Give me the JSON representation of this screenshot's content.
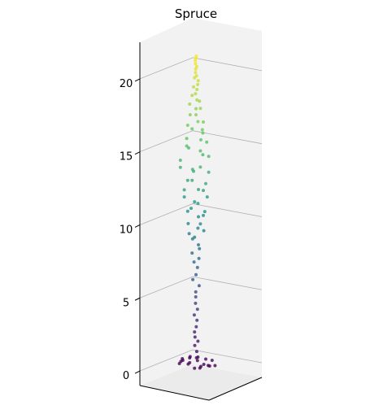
{
  "chart_data": {
    "type": "scatter",
    "title": "Spruce",
    "xlabel": "",
    "ylabel": "",
    "zlabel": "",
    "z_ticks": [
      "0",
      "5",
      "10",
      "15",
      "20"
    ],
    "zlim": [
      -1,
      22.5
    ],
    "grid": true,
    "colormap": "viridis",
    "color_by": "z",
    "point_color": "#440154",
    "series": [
      {
        "name": "",
        "points_xyz": [
          [
            -0.3,
            0.2,
            0.1
          ],
          [
            0.4,
            -0.2,
            0.05
          ],
          [
            0.6,
            0.5,
            0.0
          ],
          [
            -0.7,
            -0.4,
            0.2
          ],
          [
            0.9,
            0.1,
            0.15
          ],
          [
            -0.5,
            0.6,
            0.3
          ],
          [
            0.2,
            -0.7,
            0.25
          ],
          [
            1.1,
            -0.3,
            0.1
          ],
          [
            -0.9,
            0.2,
            0.05
          ],
          [
            0.0,
            0.8,
            0.2
          ],
          [
            0.3,
            0.3,
            0.4
          ],
          [
            -0.2,
            -0.5,
            0.35
          ],
          [
            0.7,
            -0.6,
            0.3
          ],
          [
            -1.0,
            -0.1,
            0.15
          ],
          [
            0.5,
            0.9,
            0.05
          ],
          [
            1.2,
            0.4,
            0.25
          ],
          [
            -0.6,
            0.8,
            0.1
          ],
          [
            0.1,
            0.1,
            0.5
          ],
          [
            -0.4,
            0.0,
            0.45
          ],
          [
            0.8,
            0.7,
            0.2
          ],
          [
            0.05,
            0.0,
            0.9
          ],
          [
            -0.05,
            0.05,
            1.3
          ],
          [
            0.1,
            -0.05,
            1.6
          ],
          [
            0.0,
            0.1,
            1.9
          ],
          [
            -0.1,
            0.0,
            2.2
          ],
          [
            0.05,
            0.05,
            2.6
          ],
          [
            0.0,
            -0.1,
            3.0
          ],
          [
            -0.05,
            0.1,
            3.4
          ],
          [
            0.1,
            0.0,
            3.8
          ],
          [
            0.0,
            0.05,
            4.2
          ],
          [
            -0.05,
            -0.05,
            4.6
          ],
          [
            0.05,
            0.1,
            5.0
          ],
          [
            0.15,
            -0.1,
            5.4
          ],
          [
            -0.15,
            0.1,
            5.8
          ],
          [
            0.1,
            0.15,
            6.2
          ],
          [
            0.0,
            -0.15,
            6.6
          ],
          [
            -0.1,
            0.05,
            7.0
          ],
          [
            0.2,
            0.0,
            7.3
          ],
          [
            -0.2,
            0.1,
            7.6
          ],
          [
            0.1,
            -0.2,
            7.9
          ],
          [
            0.3,
            0.2,
            8.3
          ],
          [
            -0.3,
            -0.1,
            8.5
          ],
          [
            0.1,
            0.3,
            8.8
          ],
          [
            -0.2,
            0.4,
            9.0
          ],
          [
            0.4,
            -0.2,
            9.2
          ],
          [
            0.2,
            0.1,
            9.4
          ],
          [
            -0.4,
            0.2,
            9.6
          ],
          [
            0.5,
            0.3,
            9.8
          ],
          [
            -0.1,
            -0.4,
            10.0
          ],
          [
            0.3,
            -0.3,
            10.2
          ],
          [
            -0.5,
            0.1,
            10.4
          ],
          [
            0.6,
            0.0,
            10.6
          ],
          [
            0.0,
            0.5,
            10.8
          ],
          [
            -0.3,
            -0.3,
            11.0
          ],
          [
            0.4,
            0.4,
            11.2
          ],
          [
            -0.6,
            0.3,
            11.4
          ],
          [
            0.7,
            -0.1,
            11.6
          ],
          [
            0.1,
            -0.6,
            11.8
          ],
          [
            -0.4,
            0.6,
            12.0
          ],
          [
            0.5,
            0.5,
            12.2
          ],
          [
            -0.7,
            -0.2,
            12.4
          ],
          [
            0.8,
            0.2,
            12.6
          ],
          [
            0.2,
            0.7,
            12.8
          ],
          [
            -0.5,
            -0.5,
            13.0
          ],
          [
            0.6,
            -0.4,
            13.2
          ],
          [
            -0.8,
            0.4,
            13.4
          ],
          [
            0.3,
            0.8,
            13.6
          ],
          [
            0.7,
            0.6,
            13.8
          ],
          [
            -0.6,
            0.7,
            14.0
          ],
          [
            0.0,
            -0.7,
            14.2
          ],
          [
            0.8,
            -0.1,
            14.4
          ],
          [
            -0.7,
            -0.3,
            14.6
          ],
          [
            0.5,
            0.3,
            14.8
          ],
          [
            -0.3,
            0.5,
            15.0
          ],
          [
            0.4,
            -0.5,
            15.2
          ],
          [
            -0.5,
            0.2,
            15.4
          ],
          [
            0.6,
            0.4,
            15.6
          ],
          [
            0.2,
            -0.4,
            15.8
          ],
          [
            -0.4,
            -0.2,
            16.0
          ],
          [
            0.5,
            0.1,
            16.2
          ],
          [
            -0.3,
            0.4,
            16.4
          ],
          [
            0.3,
            -0.3,
            16.6
          ],
          [
            0.4,
            0.4,
            16.8
          ],
          [
            -0.4,
            0.0,
            17.0
          ],
          [
            0.2,
            0.3,
            17.2
          ],
          [
            -0.2,
            -0.3,
            17.4
          ],
          [
            0.3,
            0.0,
            17.6
          ],
          [
            -0.3,
            0.2,
            17.8
          ],
          [
            0.1,
            -0.2,
            18.0
          ],
          [
            0.2,
            0.2,
            18.2
          ],
          [
            -0.2,
            0.1,
            18.4
          ],
          [
            0.1,
            0.2,
            18.6
          ],
          [
            0.0,
            -0.1,
            18.8
          ],
          [
            -0.1,
            0.1,
            19.0
          ],
          [
            0.15,
            0.05,
            19.2
          ],
          [
            0.05,
            -0.15,
            19.4
          ],
          [
            -0.1,
            0.0,
            19.6
          ],
          [
            0.1,
            0.1,
            19.8
          ],
          [
            0.0,
            0.05,
            20.0
          ],
          [
            -0.05,
            -0.05,
            20.2
          ],
          [
            0.05,
            0.0,
            20.4
          ],
          [
            0.0,
            0.05,
            20.6
          ],
          [
            -0.05,
            0.0,
            20.8
          ],
          [
            0.02,
            0.02,
            21.0
          ],
          [
            0.0,
            -0.02,
            21.1
          ]
        ]
      }
    ]
  }
}
